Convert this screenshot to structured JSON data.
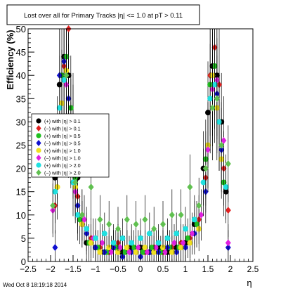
{
  "chart_data": {
    "type": "scatter",
    "title": "Lost over all for Primary Tracks |η| <= 1.0 at pT > 0.11",
    "xlabel": "η",
    "ylabel": "Efficiency (%)",
    "xlim": [
      -2.5,
      2.5
    ],
    "ylim": [
      0,
      50
    ],
    "x_ticks": [
      "−2.5",
      "−2",
      "−1.5",
      "−1",
      "−0.5",
      "0",
      "0.5",
      "1",
      "1.5",
      "2",
      "2.5"
    ],
    "y_ticks": [
      "0",
      "5",
      "10",
      "15",
      "20",
      "25",
      "30",
      "35",
      "40",
      "45",
      "50"
    ],
    "grid": false,
    "legend_position": "left-middle",
    "series": [
      {
        "name": "(+) with |η| > 0.1",
        "color": "#000000",
        "points": [
          [
            -1.9,
            18
          ],
          [
            -1.8,
            38
          ],
          [
            -1.7,
            44
          ],
          [
            -1.6,
            40
          ],
          [
            -1.5,
            30
          ],
          [
            -1.4,
            18
          ],
          [
            -1.3,
            8
          ],
          [
            -1.2,
            4
          ],
          [
            -1.0,
            3
          ],
          [
            -0.8,
            2
          ],
          [
            -0.6,
            3
          ],
          [
            -0.4,
            2
          ],
          [
            -0.2,
            3
          ],
          [
            0.0,
            3
          ],
          [
            0.2,
            2
          ],
          [
            0.4,
            3
          ],
          [
            0.6,
            2
          ],
          [
            0.8,
            3
          ],
          [
            1.0,
            4
          ],
          [
            1.2,
            8
          ],
          [
            1.4,
            20
          ],
          [
            1.5,
            32
          ],
          [
            1.6,
            42
          ],
          [
            1.7,
            40
          ],
          [
            1.8,
            30
          ],
          [
            1.9,
            15
          ]
        ]
      },
      {
        "name": "(−) with |η| > 0.1",
        "color": "#e02020",
        "points": [
          [
            -1.9,
            12
          ],
          [
            -1.8,
            30
          ],
          [
            -1.7,
            42
          ],
          [
            -1.6,
            50
          ],
          [
            -1.5,
            28
          ],
          [
            -1.4,
            14
          ],
          [
            -1.3,
            10
          ],
          [
            -1.1,
            5
          ],
          [
            -0.9,
            3
          ],
          [
            -0.7,
            2
          ],
          [
            -0.5,
            4
          ],
          [
            -0.3,
            3
          ],
          [
            -0.1,
            2
          ],
          [
            0.1,
            2
          ],
          [
            0.3,
            3
          ],
          [
            0.5,
            2
          ],
          [
            0.7,
            3
          ],
          [
            0.9,
            4
          ],
          [
            1.1,
            5
          ],
          [
            1.3,
            9
          ],
          [
            1.45,
            18
          ],
          [
            1.55,
            40
          ],
          [
            1.65,
            46
          ],
          [
            1.75,
            38
          ],
          [
            1.85,
            20
          ],
          [
            1.95,
            11
          ]
        ]
      },
      {
        "name": "(+) with |η| > 0.5",
        "color": "#20c020",
        "points": [
          [
            -1.85,
            20
          ],
          [
            -1.75,
            40
          ],
          [
            -1.65,
            44
          ],
          [
            -1.55,
            33
          ],
          [
            -1.45,
            18
          ],
          [
            -1.35,
            9
          ],
          [
            -1.15,
            4
          ],
          [
            -0.95,
            3
          ],
          [
            -0.75,
            2
          ],
          [
            -0.55,
            3
          ],
          [
            -0.35,
            2
          ],
          [
            -0.15,
            3
          ],
          [
            0.05,
            2
          ],
          [
            0.25,
            3
          ],
          [
            0.45,
            2
          ],
          [
            0.65,
            3
          ],
          [
            0.85,
            3
          ],
          [
            1.05,
            5
          ],
          [
            1.25,
            8
          ],
          [
            1.45,
            22
          ],
          [
            1.55,
            38
          ],
          [
            1.65,
            42
          ],
          [
            1.75,
            30
          ],
          [
            1.85,
            17
          ]
        ]
      },
      {
        "name": "(−) with |η| > 0.5",
        "color": "#1010d0",
        "points": [
          [
            -1.9,
            3
          ],
          [
            -1.8,
            40
          ],
          [
            -1.7,
            43
          ],
          [
            -1.6,
            35
          ],
          [
            -1.5,
            22
          ],
          [
            -1.4,
            12
          ],
          [
            -1.2,
            6
          ],
          [
            -1.0,
            3
          ],
          [
            -0.8,
            2
          ],
          [
            -0.6,
            3
          ],
          [
            -0.4,
            1
          ],
          [
            -0.2,
            2
          ],
          [
            0.0,
            1
          ],
          [
            0.2,
            2
          ],
          [
            0.4,
            2
          ],
          [
            0.6,
            3
          ],
          [
            0.8,
            2
          ],
          [
            1.0,
            3
          ],
          [
            1.2,
            6
          ],
          [
            1.45,
            15
          ],
          [
            1.6,
            40
          ],
          [
            1.7,
            36
          ],
          [
            1.8,
            24
          ],
          [
            1.95,
            3
          ]
        ]
      },
      {
        "name": "(+) with |η| > 1.0",
        "color": "#f0e020",
        "points": [
          [
            -1.85,
            16
          ],
          [
            -1.75,
            34
          ],
          [
            -1.65,
            41
          ],
          [
            -1.55,
            30
          ],
          [
            -1.45,
            16
          ],
          [
            -1.3,
            8
          ],
          [
            -1.1,
            4
          ],
          [
            -0.9,
            2
          ],
          [
            -0.7,
            3
          ],
          [
            -0.5,
            2
          ],
          [
            -0.3,
            3
          ],
          [
            -0.1,
            2
          ],
          [
            0.1,
            3
          ],
          [
            0.3,
            2
          ],
          [
            0.5,
            3
          ],
          [
            0.7,
            2
          ],
          [
            0.9,
            3
          ],
          [
            1.1,
            4
          ],
          [
            1.3,
            7
          ],
          [
            1.5,
            25
          ],
          [
            1.6,
            40
          ],
          [
            1.7,
            33
          ],
          [
            1.8,
            22
          ]
        ]
      },
      {
        "name": "(−) with |η| > 1.0",
        "color": "#e020e0",
        "points": [
          [
            -1.95,
            11
          ],
          [
            -1.85,
            22
          ],
          [
            -1.75,
            31
          ],
          [
            -1.65,
            38
          ],
          [
            -1.55,
            29
          ],
          [
            -1.45,
            15
          ],
          [
            -1.25,
            9
          ],
          [
            -1.05,
            5
          ],
          [
            -0.85,
            4
          ],
          [
            -0.65,
            2
          ],
          [
            -0.45,
            3
          ],
          [
            -0.25,
            2
          ],
          [
            -0.05,
            3
          ],
          [
            0.15,
            2
          ],
          [
            0.35,
            3
          ],
          [
            0.55,
            2
          ],
          [
            0.75,
            4
          ],
          [
            0.95,
            4
          ],
          [
            1.15,
            6
          ],
          [
            1.35,
            10
          ],
          [
            1.5,
            24
          ],
          [
            1.6,
            37
          ],
          [
            1.7,
            39
          ],
          [
            1.85,
            26
          ],
          [
            1.95,
            4
          ]
        ]
      },
      {
        "name": "(+) with |η| > 2.0",
        "color": "#20e0e0",
        "points": [
          [
            -1.9,
            15
          ],
          [
            -1.8,
            33
          ],
          [
            -1.7,
            39
          ],
          [
            -1.6,
            28
          ],
          [
            -1.5,
            17
          ],
          [
            -1.4,
            10
          ],
          [
            -1.2,
            7
          ],
          [
            -1.0,
            5
          ],
          [
            -0.8,
            6
          ],
          [
            -0.6,
            4
          ],
          [
            -0.4,
            5
          ],
          [
            -0.2,
            4
          ],
          [
            0.0,
            5
          ],
          [
            0.2,
            6
          ],
          [
            0.4,
            4
          ],
          [
            0.6,
            5
          ],
          [
            0.8,
            6
          ],
          [
            1.0,
            7
          ],
          [
            1.2,
            9
          ],
          [
            1.4,
            17
          ],
          [
            1.55,
            35
          ],
          [
            1.65,
            38
          ],
          [
            1.75,
            30
          ],
          [
            1.9,
            16
          ]
        ]
      },
      {
        "name": "(−) with |η| > 2.0",
        "color": "#60c050",
        "points": [
          [
            -1.95,
            12
          ],
          [
            -1.85,
            26
          ],
          [
            -1.75,
            30
          ],
          [
            -1.65,
            40
          ],
          [
            -1.55,
            25
          ],
          [
            -1.45,
            17
          ],
          [
            -1.3,
            10
          ],
          [
            -1.1,
            16
          ],
          [
            -0.9,
            9
          ],
          [
            -0.7,
            8
          ],
          [
            -0.5,
            7
          ],
          [
            -0.3,
            9
          ],
          [
            -0.1,
            8
          ],
          [
            0.1,
            9
          ],
          [
            0.3,
            7
          ],
          [
            0.5,
            8
          ],
          [
            0.7,
            10
          ],
          [
            0.9,
            10
          ],
          [
            1.1,
            16
          ],
          [
            1.3,
            12
          ],
          [
            1.45,
            20
          ],
          [
            1.6,
            33
          ],
          [
            1.7,
            35
          ],
          [
            1.8,
            25
          ],
          [
            1.95,
            21
          ]
        ]
      }
    ]
  },
  "footer": {
    "timestamp": "Wed Oct  8 18:19:18 2014"
  }
}
